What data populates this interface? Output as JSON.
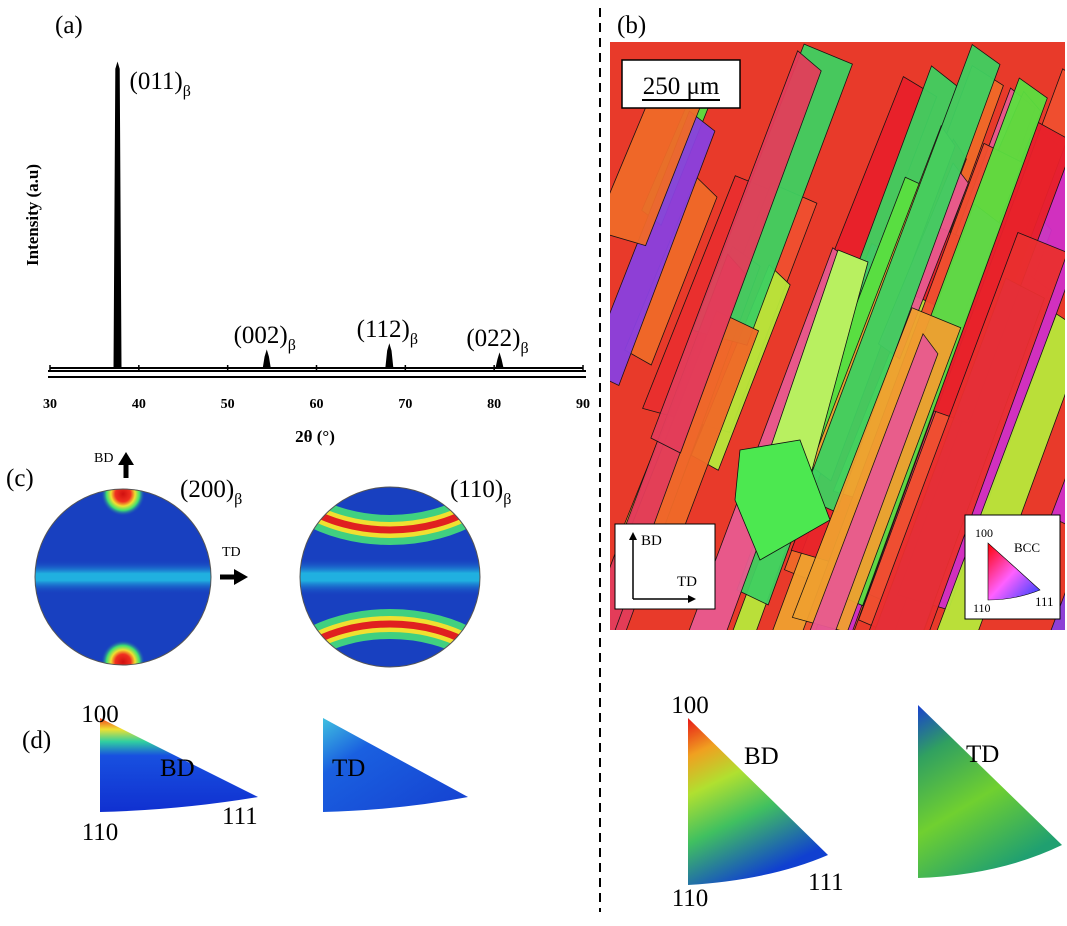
{
  "panels": {
    "a": "(a)",
    "b": "(b)",
    "c": "(c)",
    "d": "(d)"
  },
  "chart_data": {
    "type": "xrd",
    "x": [
      37.6,
      54.4,
      68.2,
      80.6
    ],
    "values": [
      100,
      5,
      7,
      4
    ],
    "peak_labels": [
      {
        "text": "(011)",
        "sub": "β"
      },
      {
        "text": "(002)",
        "sub": "β"
      },
      {
        "text": "(112)",
        "sub": "β"
      },
      {
        "text": "(022)",
        "sub": "β"
      }
    ],
    "xlim": [
      30,
      90
    ],
    "xticks": [
      30,
      40,
      50,
      60,
      70,
      80,
      90
    ],
    "ylim": [
      0,
      100
    ],
    "xlabel": "2θ (°)",
    "ylabel": "Intensity (a.u)",
    "color": "#000000"
  },
  "ebsd": {
    "scale_bar": "250 μm",
    "axes": {
      "bd": "BD",
      "td": "TD"
    },
    "legend": {
      "title": "BCC",
      "corner_100": "100",
      "corner_110": "110",
      "corner_111": "111"
    }
  },
  "pole_figures": [
    {
      "text": "(200)",
      "sub": "β",
      "bd": "BD",
      "td": "TD"
    },
    {
      "text": "(110)",
      "sub": "β"
    }
  ],
  "ipf": [
    {
      "direction": "BD",
      "corner_100": "100",
      "corner_110": "110",
      "corner_111": "111"
    },
    {
      "direction": "TD"
    },
    {
      "direction": "BD",
      "corner_100": "100",
      "corner_110": "110",
      "corner_111": "111"
    },
    {
      "direction": "TD"
    }
  ]
}
